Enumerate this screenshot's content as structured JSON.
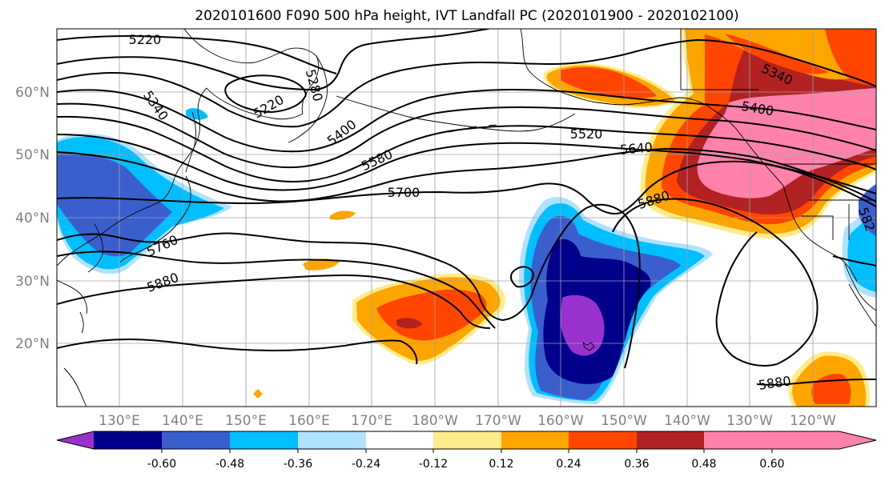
{
  "title": "2020101600 F090 500 hPa height, IVT Landfall PC (2020101900 - 2020102100)",
  "lat_labels": [
    "60°N",
    "50°N",
    "40°N",
    "30°N",
    "20°N"
  ],
  "lon_labels": [
    "130°E",
    "140°E",
    "150°E",
    "160°E",
    "170°E",
    "180°W",
    "170°W",
    "160°W",
    "150°W",
    "140°W",
    "130°W",
    "120°W"
  ],
  "colorbar": {
    "colors": [
      "#9932cc",
      "#00008b",
      "#3a5fcd",
      "#00bfff",
      "#b0e2ff",
      "#ffffff",
      "#ffec8b",
      "#ffa500",
      "#ff4500",
      "#b22222",
      "#ff82ab"
    ],
    "tick_labels": [
      "-0.60",
      "-0.48",
      "-0.36",
      "-0.24",
      "-0.12",
      "0.12",
      "0.24",
      "0.36",
      "0.48",
      "0.60"
    ]
  },
  "contour_labels": {
    "c5220a": "5220",
    "c5220b": "5220",
    "c5280": "5280",
    "c5340a": "5340",
    "c5340b": "5340",
    "c5400a": "5400",
    "c5400b": "5400",
    "c5520": "5520",
    "c5580": "5580",
    "c5640": "5640",
    "c5700": "5700",
    "c5760": "5760",
    "c5880a": "5880",
    "c5880b": "5880",
    "c5880c": "5880",
    "c5820": "582"
  }
}
